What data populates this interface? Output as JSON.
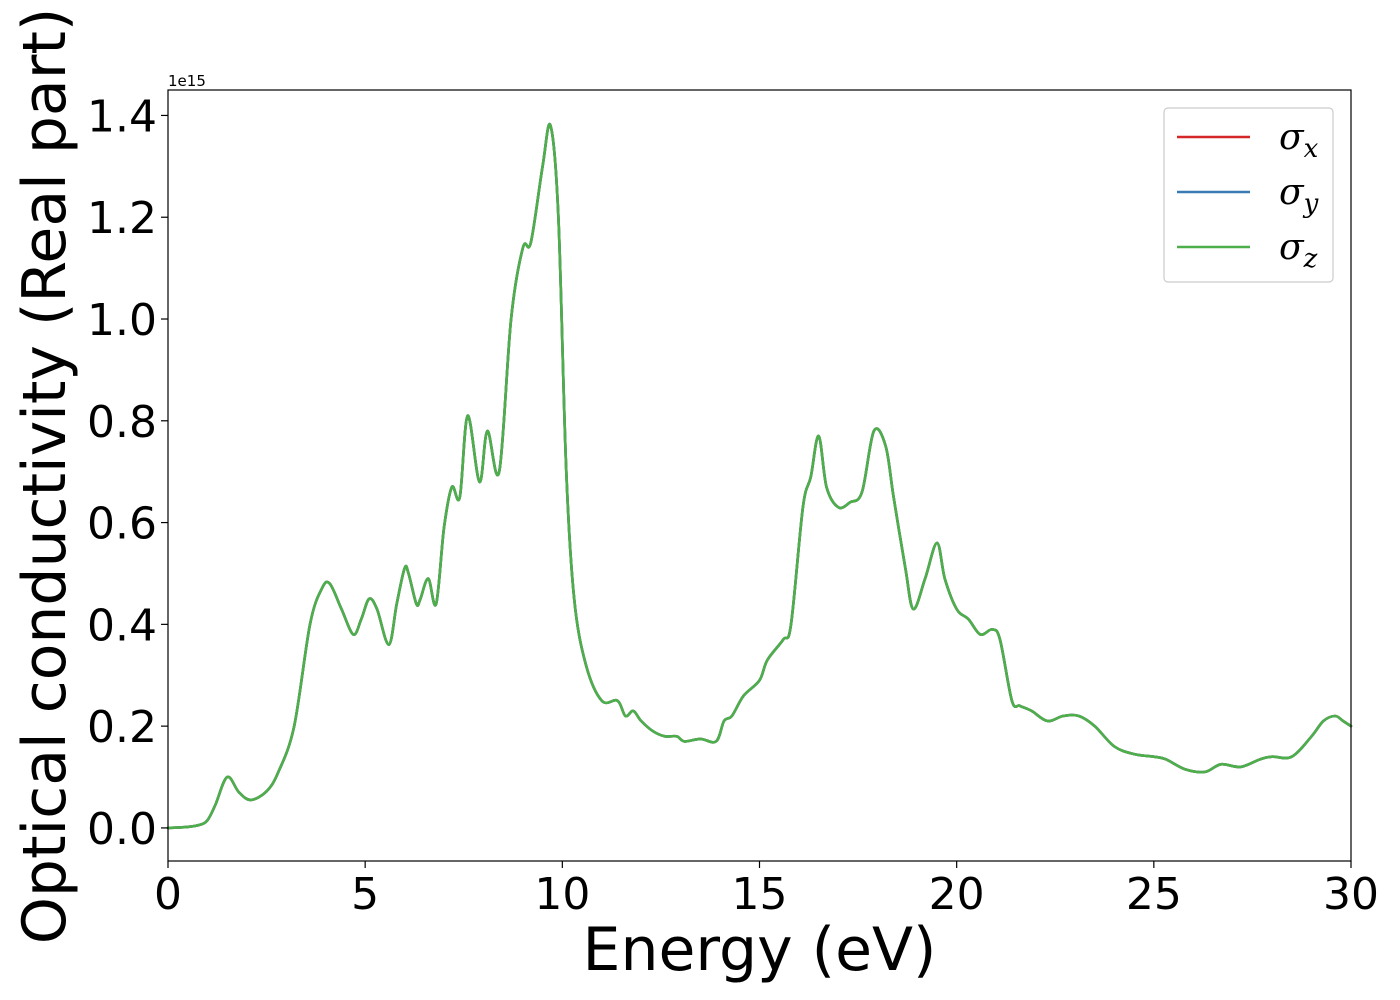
{
  "chart_data": {
    "type": "line",
    "title": "",
    "xlabel": "Energy (eV)",
    "ylabel": "Optical conductivity (Real part)",
    "y_offset_text": "1e15",
    "xlim": [
      0,
      30
    ],
    "ylim": [
      -0.065,
      1.45
    ],
    "y_scale_factor": 1000000000000000.0,
    "x_ticks": [
      0,
      5,
      10,
      15,
      20,
      25,
      30
    ],
    "x_tick_labels": [
      "0",
      "5",
      "10",
      "15",
      "20",
      "25",
      "30"
    ],
    "y_ticks": [
      0.0,
      0.2,
      0.4,
      0.6,
      0.8,
      1.0,
      1.2,
      1.4
    ],
    "y_tick_labels": [
      "0.0",
      "0.2",
      "0.4",
      "0.6",
      "0.8",
      "1.0",
      "1.2",
      "1.4"
    ],
    "grid": false,
    "legend_position": "top-right",
    "legend": [
      {
        "symbol": "σ",
        "subscript": "x",
        "color": "#d62728"
      },
      {
        "symbol": "σ",
        "subscript": "y",
        "color": "#3a7ab5"
      },
      {
        "symbol": "σ",
        "subscript": "z",
        "color": "#4daf4a"
      }
    ],
    "series": [
      {
        "legend_index": 0,
        "color": "#d62728",
        "x": [
          0,
          0.5,
          0.8,
          1.0,
          1.2,
          1.5,
          1.8,
          2.1,
          2.5,
          2.8,
          3.2,
          3.6,
          3.9,
          4.1,
          4.4,
          4.7,
          4.9,
          5.1,
          5.3,
          5.6,
          5.8,
          6.0,
          6.1,
          6.3,
          6.4,
          6.6,
          6.8,
          7.0,
          7.2,
          7.4,
          7.6,
          7.9,
          8.1,
          8.4,
          8.7,
          9.0,
          9.2,
          9.5,
          9.7,
          9.9,
          10.1,
          10.3,
          10.6,
          11.0,
          11.4,
          11.6,
          11.8,
          12.0,
          12.3,
          12.6,
          12.9,
          13.1,
          13.5,
          13.9,
          14.1,
          14.3,
          14.6,
          15.0,
          15.2,
          15.6,
          15.8,
          16.1,
          16.3,
          16.5,
          16.7,
          17.0,
          17.3,
          17.6,
          17.9,
          18.2,
          18.4,
          18.7,
          18.9,
          19.2,
          19.5,
          19.7,
          20.0,
          20.3,
          20.6,
          20.9,
          21.1,
          21.4,
          21.6,
          21.9,
          22.3,
          22.7,
          23.1,
          23.5,
          24.0,
          24.5,
          25.0,
          25.3,
          25.8,
          26.3,
          26.7,
          27.2,
          27.7,
          28.0,
          28.5,
          29.0,
          29.3,
          29.6,
          29.8,
          30.0
        ],
        "y": [
          0.0,
          0.002,
          0.006,
          0.015,
          0.045,
          0.1,
          0.07,
          0.055,
          0.072,
          0.11,
          0.2,
          0.4,
          0.47,
          0.48,
          0.43,
          0.38,
          0.41,
          0.45,
          0.43,
          0.36,
          0.44,
          0.51,
          0.5,
          0.44,
          0.45,
          0.49,
          0.44,
          0.59,
          0.67,
          0.65,
          0.81,
          0.68,
          0.78,
          0.7,
          1.0,
          1.14,
          1.15,
          1.3,
          1.38,
          1.2,
          0.7,
          0.45,
          0.32,
          0.25,
          0.25,
          0.22,
          0.23,
          0.21,
          0.19,
          0.18,
          0.18,
          0.17,
          0.175,
          0.17,
          0.21,
          0.22,
          0.26,
          0.29,
          0.33,
          0.37,
          0.4,
          0.63,
          0.69,
          0.77,
          0.67,
          0.63,
          0.64,
          0.66,
          0.78,
          0.75,
          0.65,
          0.51,
          0.43,
          0.49,
          0.56,
          0.49,
          0.43,
          0.41,
          0.38,
          0.39,
          0.37,
          0.25,
          0.24,
          0.23,
          0.21,
          0.22,
          0.22,
          0.2,
          0.16,
          0.145,
          0.14,
          0.135,
          0.115,
          0.11,
          0.125,
          0.12,
          0.135,
          0.14,
          0.14,
          0.18,
          0.21,
          0.22,
          0.21,
          0.2
        ]
      },
      {
        "legend_index": 1,
        "color": "#3a7ab5",
        "x": [
          0,
          0.5,
          0.8,
          1.0,
          1.2,
          1.5,
          1.8,
          2.1,
          2.5,
          2.8,
          3.2,
          3.6,
          3.9,
          4.1,
          4.4,
          4.7,
          4.9,
          5.1,
          5.3,
          5.6,
          5.8,
          6.0,
          6.1,
          6.3,
          6.4,
          6.6,
          6.8,
          7.0,
          7.2,
          7.4,
          7.6,
          7.9,
          8.1,
          8.4,
          8.7,
          9.0,
          9.2,
          9.5,
          9.7,
          9.9,
          10.1,
          10.3,
          10.6,
          11.0,
          11.4,
          11.6,
          11.8,
          12.0,
          12.3,
          12.6,
          12.9,
          13.1,
          13.5,
          13.9,
          14.1,
          14.3,
          14.6,
          15.0,
          15.2,
          15.6,
          15.8,
          16.1,
          16.3,
          16.5,
          16.7,
          17.0,
          17.3,
          17.6,
          17.9,
          18.2,
          18.4,
          18.7,
          18.9,
          19.2,
          19.5,
          19.7,
          20.0,
          20.3,
          20.6,
          20.9,
          21.1,
          21.4,
          21.6,
          21.9,
          22.3,
          22.7,
          23.1,
          23.5,
          24.0,
          24.5,
          25.0,
          25.3,
          25.8,
          26.3,
          26.7,
          27.2,
          27.7,
          28.0,
          28.5,
          29.0,
          29.3,
          29.6,
          29.8,
          30.0
        ],
        "y": [
          0.0,
          0.002,
          0.006,
          0.015,
          0.045,
          0.1,
          0.07,
          0.055,
          0.072,
          0.11,
          0.2,
          0.4,
          0.47,
          0.48,
          0.43,
          0.38,
          0.41,
          0.45,
          0.43,
          0.36,
          0.44,
          0.51,
          0.5,
          0.44,
          0.45,
          0.49,
          0.44,
          0.59,
          0.67,
          0.65,
          0.81,
          0.68,
          0.78,
          0.7,
          1.0,
          1.14,
          1.15,
          1.3,
          1.38,
          1.2,
          0.7,
          0.45,
          0.32,
          0.25,
          0.25,
          0.22,
          0.23,
          0.21,
          0.19,
          0.18,
          0.18,
          0.17,
          0.175,
          0.17,
          0.21,
          0.22,
          0.26,
          0.29,
          0.33,
          0.37,
          0.4,
          0.63,
          0.69,
          0.77,
          0.67,
          0.63,
          0.64,
          0.66,
          0.78,
          0.75,
          0.65,
          0.51,
          0.43,
          0.49,
          0.56,
          0.49,
          0.43,
          0.41,
          0.38,
          0.39,
          0.37,
          0.25,
          0.24,
          0.23,
          0.21,
          0.22,
          0.22,
          0.2,
          0.16,
          0.145,
          0.14,
          0.135,
          0.115,
          0.11,
          0.125,
          0.12,
          0.135,
          0.14,
          0.14,
          0.18,
          0.21,
          0.22,
          0.21,
          0.2
        ]
      },
      {
        "legend_index": 2,
        "color": "#4daf4a",
        "x": [
          0,
          0.5,
          0.8,
          1.0,
          1.2,
          1.5,
          1.8,
          2.1,
          2.5,
          2.8,
          3.2,
          3.6,
          3.9,
          4.1,
          4.4,
          4.7,
          4.9,
          5.1,
          5.3,
          5.6,
          5.8,
          6.0,
          6.1,
          6.3,
          6.4,
          6.6,
          6.8,
          7.0,
          7.2,
          7.4,
          7.6,
          7.9,
          8.1,
          8.4,
          8.7,
          9.0,
          9.2,
          9.5,
          9.7,
          9.9,
          10.1,
          10.3,
          10.6,
          11.0,
          11.4,
          11.6,
          11.8,
          12.0,
          12.3,
          12.6,
          12.9,
          13.1,
          13.5,
          13.9,
          14.1,
          14.3,
          14.6,
          15.0,
          15.2,
          15.6,
          15.8,
          16.1,
          16.3,
          16.5,
          16.7,
          17.0,
          17.3,
          17.6,
          17.9,
          18.2,
          18.4,
          18.7,
          18.9,
          19.2,
          19.5,
          19.7,
          20.0,
          20.3,
          20.6,
          20.9,
          21.1,
          21.4,
          21.6,
          21.9,
          22.3,
          22.7,
          23.1,
          23.5,
          24.0,
          24.5,
          25.0,
          25.3,
          25.8,
          26.3,
          26.7,
          27.2,
          27.7,
          28.0,
          28.5,
          29.0,
          29.3,
          29.6,
          29.8,
          30.0
        ],
        "y": [
          0.0,
          0.002,
          0.006,
          0.015,
          0.045,
          0.1,
          0.07,
          0.055,
          0.072,
          0.11,
          0.2,
          0.4,
          0.47,
          0.48,
          0.43,
          0.38,
          0.41,
          0.45,
          0.43,
          0.36,
          0.44,
          0.51,
          0.5,
          0.44,
          0.45,
          0.49,
          0.44,
          0.59,
          0.67,
          0.65,
          0.81,
          0.68,
          0.78,
          0.7,
          1.0,
          1.14,
          1.15,
          1.3,
          1.38,
          1.2,
          0.7,
          0.45,
          0.32,
          0.25,
          0.25,
          0.22,
          0.23,
          0.21,
          0.19,
          0.18,
          0.18,
          0.17,
          0.175,
          0.17,
          0.21,
          0.22,
          0.26,
          0.29,
          0.33,
          0.37,
          0.4,
          0.63,
          0.69,
          0.77,
          0.67,
          0.63,
          0.64,
          0.66,
          0.78,
          0.75,
          0.65,
          0.51,
          0.43,
          0.49,
          0.56,
          0.49,
          0.43,
          0.41,
          0.38,
          0.39,
          0.37,
          0.25,
          0.24,
          0.23,
          0.21,
          0.22,
          0.22,
          0.2,
          0.16,
          0.145,
          0.14,
          0.135,
          0.115,
          0.11,
          0.125,
          0.12,
          0.135,
          0.14,
          0.14,
          0.18,
          0.21,
          0.22,
          0.21,
          0.2
        ]
      }
    ]
  }
}
